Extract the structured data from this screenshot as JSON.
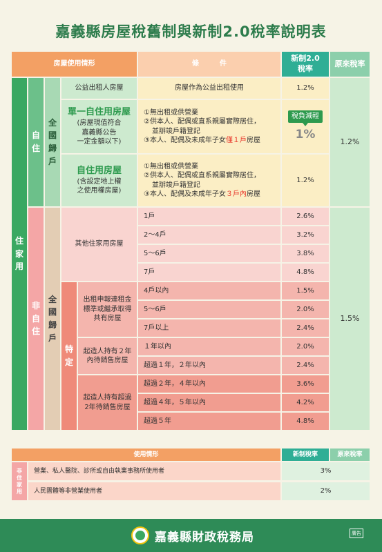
{
  "title": "嘉義縣房屋稅舊制與新制2.0稅率說明表",
  "header": {
    "usage": "房屋使用情形",
    "condition": "條　　　件",
    "new_rate_line1": "新制2.0",
    "new_rate_line2": "稅率",
    "old_rate": "原來稅率"
  },
  "groups": {
    "residential": [
      "住",
      "家",
      "用"
    ],
    "self_use": [
      "自",
      "住"
    ],
    "non_self_use": [
      "非",
      "自",
      "住"
    ],
    "nationwide": [
      "全",
      "國",
      "歸",
      "戶"
    ],
    "specific": [
      "特",
      "定"
    ]
  },
  "self_use_rows": {
    "public_rental": {
      "label": "公益出租人房屋",
      "condition": "房屋作為公益出租使用",
      "rate": "1.2%"
    },
    "single_home": {
      "label": "單一自住用房屋",
      "sub": [
        "(房屋現值符合",
        "嘉義縣公告",
        "一定金額以下)"
      ],
      "cond1": "①無出租或供營業",
      "cond2a": "②供本人、配偶或直系親屬實際居住，",
      "cond2b": "並辦竣戶籍登記",
      "cond3a": "③本人、配偶及未成年子女",
      "cond3b": "僅１戶",
      "cond3c": "房屋",
      "badge": "稅負減輕",
      "rate": "1%"
    },
    "self_home": {
      "label": "自住用房屋",
      "sub": [
        "(含設定地上權",
        "之使用權房屋)"
      ],
      "cond1": "①無出租或供營業",
      "cond2a": "②供本人、配偶或直系親屬實際居住，",
      "cond2b": "並辦竣戶籍登記",
      "cond3a": "③本人、配偶及未成年子女",
      "cond3b": "３戶內",
      "cond3c": "房屋",
      "rate": "1.2%"
    },
    "old_rate": "1.2%"
  },
  "non_self_rows": {
    "other": {
      "label": "其他住家用房屋",
      "items": [
        {
          "cond": "1戶",
          "rate": "2.6%"
        },
        {
          "cond": "2～4戶",
          "rate": "3.2%"
        },
        {
          "cond": "5～6戶",
          "rate": "3.8%"
        },
        {
          "cond": "7戶",
          "rate": "4.8%"
        }
      ]
    },
    "rent": {
      "label": [
        "出租申報達租金",
        "標準或繼承取得",
        "共有房屋"
      ],
      "items": [
        {
          "cond": "4戶以內",
          "rate": "1.5%"
        },
        {
          "cond": "5～6戶",
          "rate": "2.0%"
        },
        {
          "cond": "7戶以上",
          "rate": "2.4%"
        }
      ]
    },
    "builder1": {
      "label": [
        "起造人持有２年",
        "內待銷售房屋"
      ],
      "items": [
        {
          "cond": "１年以內",
          "rate": "2.0%"
        },
        {
          "cond": "超過１年，２年以內",
          "rate": "2.4%"
        }
      ]
    },
    "builder2": {
      "label": [
        "起造人持有超過",
        "2年待銷售房屋"
      ],
      "items": [
        {
          "cond": "超過２年，４年以內",
          "rate": "3.6%"
        },
        {
          "cond": "超過４年，５年以內",
          "rate": "4.2%"
        },
        {
          "cond": "超過５年",
          "rate": "4.8%"
        }
      ]
    },
    "old_rate": "1.5%"
  },
  "table2": {
    "header": {
      "usage": "使用情形",
      "new_rate": "新制稅率",
      "old_rate": "原來稅率"
    },
    "side": [
      "非",
      "住",
      "家",
      "用"
    ],
    "rows": [
      {
        "label": "營業、私人醫院、診所或自由執業事務所使用者",
        "rate": "3%"
      },
      {
        "label": "人民團體等非營業使用者",
        "rate": "2%"
      }
    ]
  },
  "footer": {
    "org": "嘉義縣財政稅務局",
    "ad": "廣告"
  },
  "colors": {
    "green_dark": "#2e8b57",
    "orange_header": "#f3a064",
    "peach": "#fbd6b8",
    "green_light": "#cdeacf",
    "cream": "#fbeec5",
    "pink_light": "#f9d4d0",
    "pink_mid": "#f4b5ad",
    "salmon": "#ef8a79",
    "accent_red": "#e8362a"
  }
}
